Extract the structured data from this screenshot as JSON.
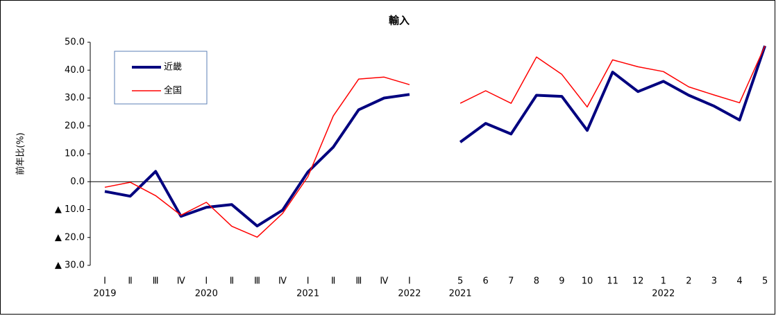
{
  "chart_data": {
    "type": "line",
    "title": "輸入",
    "y_label": "前年比(%)",
    "categories": [
      "Ⅰ",
      "Ⅱ",
      "Ⅲ",
      "Ⅳ",
      "Ⅰ",
      "Ⅱ",
      "Ⅲ",
      "Ⅳ",
      "Ⅰ",
      "Ⅱ",
      "Ⅲ",
      "Ⅳ",
      "Ⅰ",
      null,
      "5",
      "6",
      "7",
      "8",
      "9",
      "10",
      "11",
      "12",
      "1",
      "2",
      "3",
      "4",
      "5"
    ],
    "year_labels": [
      "2019",
      null,
      null,
      null,
      "2020",
      null,
      null,
      null,
      "2021",
      null,
      null,
      null,
      "2022",
      null,
      "2021",
      null,
      null,
      null,
      null,
      null,
      null,
      null,
      "2022",
      null,
      null,
      null,
      null
    ],
    "series": [
      {
        "name": "近畿",
        "color": "#00007f",
        "values": [
          -3.5,
          -5.2,
          3.7,
          -12.4,
          -9.2,
          -8.2,
          -15.9,
          -10.2,
          3.5,
          12.4,
          25.8,
          30.0,
          31.3,
          null,
          14.2,
          20.9,
          17.1,
          31.0,
          30.6,
          18.4,
          39.3,
          32.3,
          36.0,
          31.0,
          27.1,
          22.1,
          48.7
        ]
      },
      {
        "name": "全国",
        "color": "#ff0000",
        "values": [
          -2.0,
          -0.2,
          -5.0,
          -12.0,
          -7.4,
          -16.0,
          -19.9,
          -11.4,
          1.8,
          23.6,
          36.8,
          37.5,
          34.8,
          null,
          28.1,
          32.6,
          28.1,
          44.7,
          38.5,
          26.8,
          43.7,
          41.2,
          39.5,
          34.0,
          31.1,
          28.3,
          48.7
        ]
      }
    ],
    "ylim": [
      -30,
      50
    ],
    "yticks": [
      {
        "value": 50,
        "label": "50.0"
      },
      {
        "value": 40,
        "label": "40.0"
      },
      {
        "value": 30,
        "label": "30.0"
      },
      {
        "value": 20,
        "label": "20.0"
      },
      {
        "value": 10,
        "label": "10.0"
      },
      {
        "value": 0,
        "label": "0.0"
      },
      {
        "value": -10,
        "label": "▲ 10.0"
      },
      {
        "value": -20,
        "label": "▲ 20.0"
      },
      {
        "value": -30,
        "label": "▲ 30.0"
      }
    ]
  }
}
